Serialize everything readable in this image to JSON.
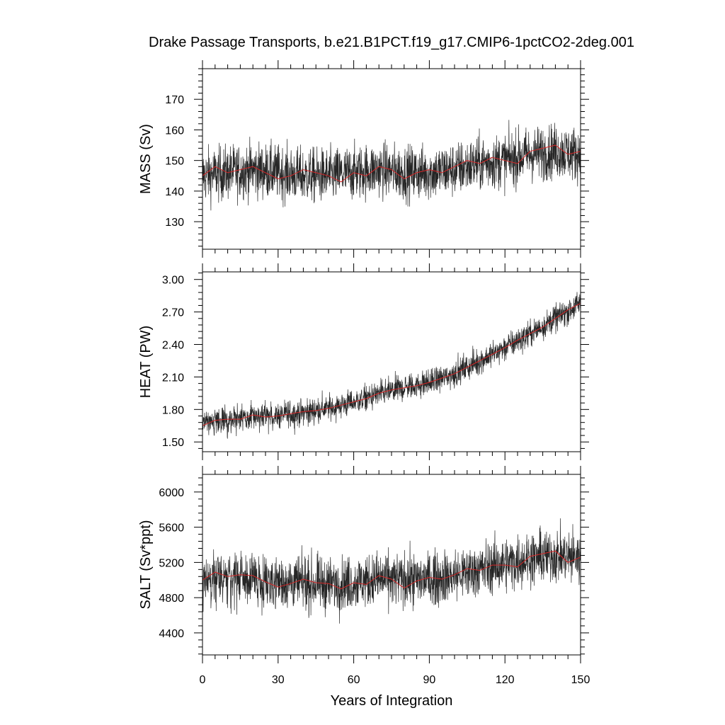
{
  "title": "Drake Passage Transports, b.e21.B1PCT.f19_g17.CMIP6-1pctCO2-2deg.001",
  "xlabel": "Years of Integration",
  "colors": {
    "raw": "#000000",
    "smooth": "#d62728",
    "frame": "#000000"
  },
  "chart_data": [
    {
      "type": "line",
      "ylabel": "MASS (Sv)",
      "xlim": [
        0,
        150
      ],
      "ylim": [
        121,
        180
      ],
      "xticks": [
        0,
        30,
        60,
        90,
        120,
        150
      ],
      "xtick_labels": [
        "0",
        "30",
        "60",
        "90",
        "120",
        "150"
      ],
      "yticks": [
        130,
        140,
        150,
        160,
        170
      ],
      "ytick_labels": [
        "130",
        "140",
        "150",
        "160",
        "170"
      ],
      "series": [
        {
          "kind": "monthly",
          "noise": 8,
          "anchors_x": [
            0,
            10,
            20,
            30,
            40,
            50,
            60,
            70,
            80,
            90,
            100,
            110,
            120,
            130,
            140,
            150
          ],
          "anchors_y": [
            145,
            146,
            147,
            146,
            145,
            145,
            146,
            147,
            146,
            146,
            147,
            149,
            150,
            152,
            153,
            152
          ]
        },
        {
          "kind": "annual",
          "x": [
            0,
            5,
            10,
            15,
            20,
            25,
            30,
            35,
            40,
            45,
            50,
            55,
            60,
            65,
            70,
            75,
            80,
            85,
            90,
            95,
            100,
            105,
            110,
            115,
            120,
            125,
            130,
            135,
            140,
            145,
            150
          ],
          "y": [
            145,
            148,
            146,
            147,
            148,
            146,
            144,
            145,
            147,
            146,
            145,
            143,
            146,
            145,
            148,
            147,
            144,
            146,
            147,
            146,
            148,
            150,
            149,
            151,
            150,
            149,
            153,
            154,
            155,
            152,
            153
          ]
        }
      ]
    },
    {
      "type": "line",
      "ylabel": "HEAT (PW)",
      "xlim": [
        0,
        150
      ],
      "ylim": [
        1.41,
        3.07
      ],
      "xticks": [
        0,
        30,
        60,
        90,
        120,
        150
      ],
      "xtick_labels": [
        "0",
        "30",
        "60",
        "90",
        "120",
        "150"
      ],
      "yticks": [
        1.5,
        1.8,
        2.1,
        2.4,
        2.7,
        3.0
      ],
      "ytick_labels": [
        "1.50",
        "1.80",
        "2.10",
        "2.40",
        "2.70",
        "3.00"
      ],
      "series": [
        {
          "kind": "monthly",
          "noise": 0.11,
          "anchors_x": [
            0,
            10,
            20,
            30,
            40,
            50,
            60,
            70,
            80,
            90,
            100,
            110,
            120,
            130,
            140,
            150
          ],
          "anchors_y": [
            1.66,
            1.7,
            1.73,
            1.74,
            1.77,
            1.81,
            1.87,
            1.94,
            2.0,
            2.05,
            2.13,
            2.25,
            2.37,
            2.5,
            2.64,
            2.78
          ]
        },
        {
          "kind": "annual",
          "x": [
            0,
            5,
            10,
            15,
            20,
            25,
            30,
            35,
            40,
            45,
            50,
            55,
            60,
            65,
            70,
            75,
            80,
            85,
            90,
            95,
            100,
            105,
            110,
            115,
            120,
            125,
            130,
            135,
            140,
            145,
            150
          ],
          "y": [
            1.65,
            1.7,
            1.71,
            1.71,
            1.75,
            1.73,
            1.74,
            1.76,
            1.78,
            1.79,
            1.81,
            1.84,
            1.87,
            1.9,
            1.95,
            1.98,
            2.0,
            2.02,
            2.05,
            2.09,
            2.13,
            2.19,
            2.25,
            2.31,
            2.37,
            2.44,
            2.5,
            2.56,
            2.64,
            2.72,
            2.78
          ]
        }
      ]
    },
    {
      "type": "line",
      "ylabel": "SALT (Sv*ppt)",
      "xlim": [
        0,
        150
      ],
      "ylim": [
        4150,
        6200
      ],
      "xticks": [
        0,
        30,
        60,
        90,
        120,
        150
      ],
      "xtick_labels": [
        "0",
        "30",
        "60",
        "90",
        "120",
        "150"
      ],
      "yticks": [
        4400,
        4800,
        5200,
        5600,
        6000
      ],
      "ytick_labels": [
        "4400",
        "4800",
        "5200",
        "5600",
        "6000"
      ],
      "series": [
        {
          "kind": "monthly",
          "noise": 270,
          "anchors_x": [
            0,
            10,
            20,
            30,
            40,
            50,
            60,
            70,
            80,
            90,
            100,
            110,
            120,
            130,
            140,
            150
          ],
          "anchors_y": [
            5000,
            5020,
            5010,
            4980,
            4960,
            4950,
            4970,
            5010,
            5000,
            5010,
            5050,
            5120,
            5180,
            5250,
            5280,
            5250
          ]
        },
        {
          "kind": "annual",
          "x": [
            0,
            5,
            10,
            15,
            20,
            25,
            30,
            35,
            40,
            45,
            50,
            55,
            60,
            65,
            70,
            75,
            80,
            85,
            90,
            95,
            100,
            105,
            110,
            115,
            120,
            125,
            130,
            135,
            140,
            145,
            150
          ],
          "y": [
            5000,
            5090,
            5040,
            5060,
            5050,
            4980,
            4920,
            4960,
            5010,
            4970,
            4960,
            4900,
            4970,
            4950,
            5050,
            5010,
            4910,
            4990,
            5030,
            5010,
            5060,
            5130,
            5110,
            5170,
            5170,
            5150,
            5270,
            5300,
            5330,
            5200,
            5260
          ]
        }
      ]
    }
  ]
}
